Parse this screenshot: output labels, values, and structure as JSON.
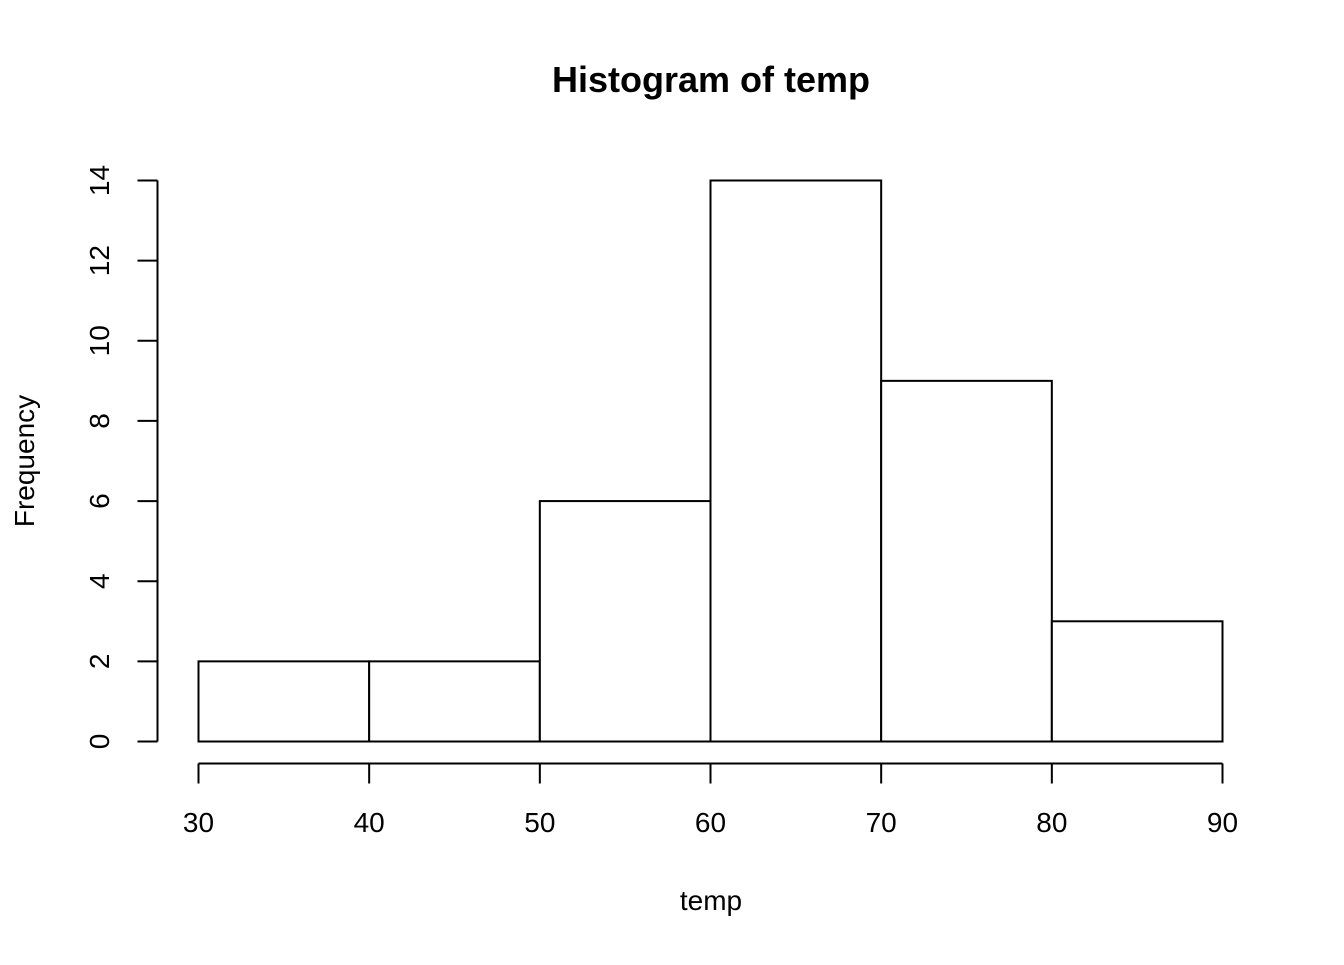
{
  "chart_data": {
    "type": "bar",
    "title": "Histogram of temp",
    "xlabel": "temp",
    "ylabel": "Frequency",
    "bins": [
      {
        "start": 30,
        "end": 40,
        "count": 2
      },
      {
        "start": 40,
        "end": 50,
        "count": 2
      },
      {
        "start": 50,
        "end": 60,
        "count": 6
      },
      {
        "start": 60,
        "end": 70,
        "count": 14
      },
      {
        "start": 70,
        "end": 80,
        "count": 9
      },
      {
        "start": 80,
        "end": 90,
        "count": 3
      }
    ],
    "categories": [
      "30-40",
      "40-50",
      "50-60",
      "60-70",
      "70-80",
      "80-90"
    ],
    "values": [
      2,
      2,
      6,
      14,
      9,
      3
    ],
    "xlim": [
      30,
      90
    ],
    "ylim": [
      0,
      14
    ],
    "x_ticks": [
      "30",
      "40",
      "50",
      "60",
      "70",
      "80",
      "90"
    ],
    "y_ticks": [
      "0",
      "2",
      "4",
      "6",
      "8",
      "10",
      "12",
      "14"
    ],
    "grid": false,
    "legend": "none"
  }
}
